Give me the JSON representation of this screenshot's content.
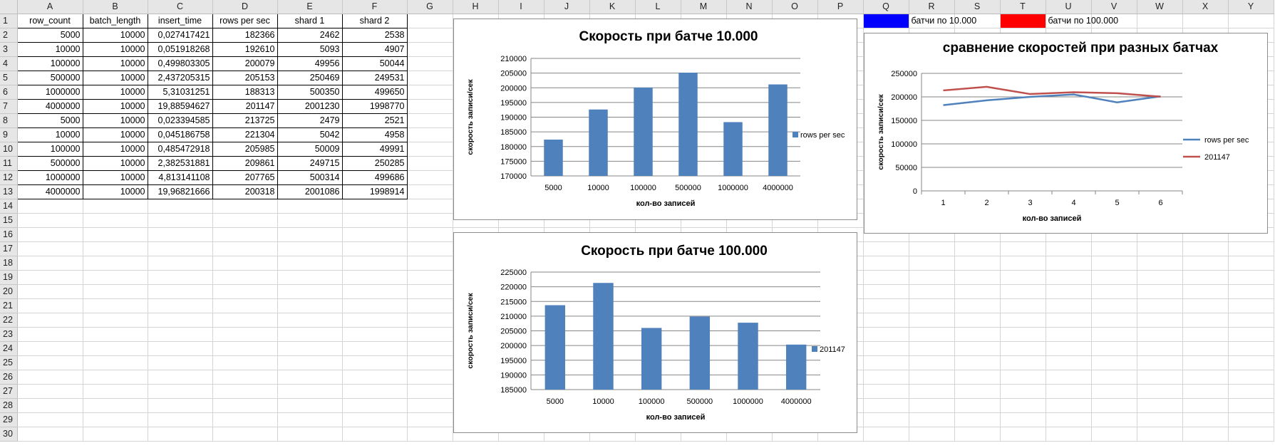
{
  "columns": [
    "A",
    "B",
    "C",
    "D",
    "E",
    "F",
    "G",
    "H",
    "I",
    "J",
    "K",
    "L",
    "M",
    "N",
    "O",
    "P",
    "Q",
    "R",
    "S",
    "T",
    "U",
    "V",
    "W",
    "X",
    "Y"
  ],
  "row_count": 30,
  "table": {
    "headers": [
      "row_count",
      "batch_length",
      "insert_time",
      "rows per sec",
      "shard 1",
      "shard 2"
    ],
    "rows": [
      [
        "5000",
        "10000",
        "0,027417421",
        "182366",
        "2462",
        "2538"
      ],
      [
        "10000",
        "10000",
        "0,051918268",
        "192610",
        "5093",
        "4907"
      ],
      [
        "100000",
        "10000",
        "0,499803305",
        "200079",
        "49956",
        "50044"
      ],
      [
        "500000",
        "10000",
        "2,437205315",
        "205153",
        "250469",
        "249531"
      ],
      [
        "1000000",
        "10000",
        "5,31031251",
        "188313",
        "500350",
        "499650"
      ],
      [
        "4000000",
        "10000",
        "19,88594627",
        "201147",
        "2001230",
        "1998770"
      ],
      [
        "5000",
        "10000",
        "0,023394585",
        "213725",
        "2479",
        "2521"
      ],
      [
        "10000",
        "10000",
        "0,045186758",
        "221304",
        "5042",
        "4958"
      ],
      [
        "100000",
        "10000",
        "0,485472918",
        "205985",
        "50009",
        "49991"
      ],
      [
        "500000",
        "10000",
        "2,382531881",
        "209861",
        "249715",
        "250285"
      ],
      [
        "1000000",
        "10000",
        "4,813141108",
        "207765",
        "500314",
        "499686"
      ],
      [
        "4000000",
        "10000",
        "19,96821666",
        "200318",
        "2001086",
        "1998914"
      ]
    ]
  },
  "legend_cells": {
    "blue_color": "#0000ff",
    "blue_label": "батчи по 10.000",
    "red_color": "#ff0000",
    "red_label": "батчи по 100.000"
  },
  "chart_data": [
    {
      "type": "bar",
      "title": "Скорость при батче 10.000",
      "xlabel": "кол-во записей",
      "ylabel": "скорость записи/сек",
      "categories": [
        "5000",
        "10000",
        "100000",
        "500000",
        "1000000",
        "4000000"
      ],
      "series": [
        {
          "name": "rows per sec",
          "values": [
            182366,
            192610,
            200079,
            205153,
            188313,
            201147
          ],
          "color": "#4f81bd"
        }
      ],
      "ylim": [
        170000,
        210000
      ],
      "yticks": [
        "170000",
        "175000",
        "180000",
        "185000",
        "190000",
        "195000",
        "200000",
        "205000",
        "210000"
      ],
      "grid": true,
      "legend": "right"
    },
    {
      "type": "bar",
      "title": "Скорость при батче 100.000",
      "xlabel": "кол-во записей",
      "ylabel": "скорость записи/сек",
      "categories": [
        "5000",
        "10000",
        "100000",
        "500000",
        "1000000",
        "4000000"
      ],
      "series": [
        {
          "name": "201147",
          "values": [
            213725,
            221304,
            205985,
            209861,
            207765,
            200318
          ],
          "color": "#4f81bd"
        }
      ],
      "ylim": [
        185000,
        225000
      ],
      "yticks": [
        "185000",
        "190000",
        "195000",
        "200000",
        "205000",
        "210000",
        "215000",
        "220000",
        "225000"
      ],
      "grid": true,
      "legend": "right"
    },
    {
      "type": "line",
      "title": "сравнение скоростей при разных батчах",
      "xlabel": "кол-во записей",
      "ylabel": "скорость записи/сек",
      "categories": [
        "1",
        "2",
        "3",
        "4",
        "5",
        "6"
      ],
      "series": [
        {
          "name": "rows per sec",
          "values": [
            182366,
            192610,
            200079,
            205153,
            188313,
            201147
          ],
          "color": "#4f81bd"
        },
        {
          "name": "201147",
          "values": [
            213725,
            221304,
            205985,
            209861,
            207765,
            200318
          ],
          "color": "#c0504d"
        }
      ],
      "ylim": [
        0,
        250000
      ],
      "yticks": [
        "0",
        "50000",
        "100000",
        "150000",
        "200000",
        "250000"
      ],
      "grid": true,
      "legend": "right"
    }
  ]
}
